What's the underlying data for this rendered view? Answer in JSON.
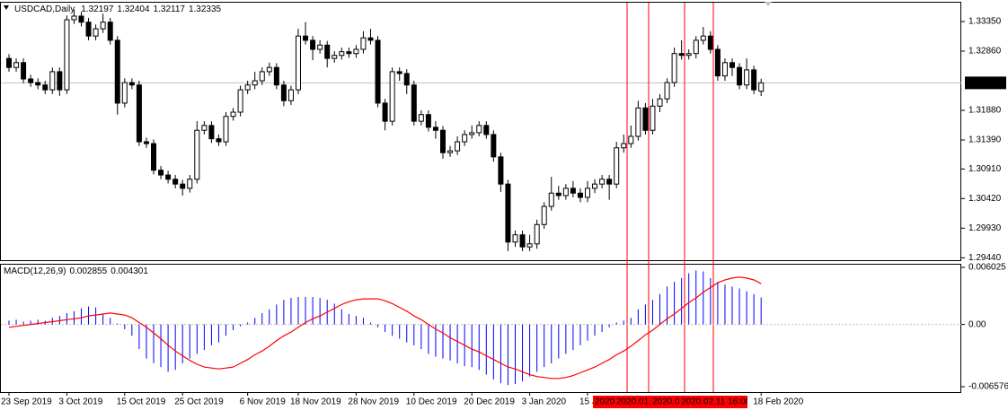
{
  "chart_data": [
    {
      "type": "candlestick",
      "title": "USDCAD,Daily",
      "up_color": "#ffffff",
      "down_color": "#000000",
      "wick_color": "#000000",
      "last_price_line": true,
      "ylim": [
        1.294,
        1.33677
      ],
      "yticks": [
        {
          "value": 1.3335,
          "label": "1.33350"
        },
        {
          "value": 1.3286,
          "label": "1.32860"
        },
        {
          "value": 1.3188,
          "label": "1.31880"
        },
        {
          "value": 1.3139,
          "label": "1.31390"
        },
        {
          "value": 1.3091,
          "label": "1.30910"
        },
        {
          "value": 1.3042,
          "label": "1.30420"
        },
        {
          "value": 1.2993,
          "label": "1.29930"
        },
        {
          "value": 1.2944,
          "label": "1.29440"
        }
      ],
      "markers": [
        "2020",
        "2020.01.",
        "2020.0",
        "2020.02.11 16:00"
      ],
      "categories": [
        "23 Sep 2019",
        null,
        null,
        null,
        null,
        null,
        null,
        null,
        "3 Oct 2019",
        null,
        null,
        null,
        null,
        null,
        null,
        null,
        "15 Oct 2019",
        null,
        null,
        null,
        null,
        null,
        null,
        null,
        "25 Oct 2019",
        null,
        null,
        null,
        null,
        null,
        null,
        null,
        null,
        "6 Nov 2019",
        null,
        null,
        null,
        null,
        null,
        null,
        "18 Nov 2019",
        null,
        null,
        null,
        null,
        null,
        null,
        null,
        "28 Nov 2019",
        null,
        null,
        null,
        null,
        null,
        null,
        null,
        "10 Dec 2019",
        null,
        null,
        null,
        null,
        null,
        null,
        null,
        "20 Dec 2019",
        null,
        null,
        null,
        null,
        null,
        null,
        null,
        "3 Jan 2020",
        null,
        null,
        null,
        null,
        null,
        null,
        null,
        "15 J",
        null,
        null,
        null,
        null,
        null,
        null,
        null,
        null,
        null,
        null,
        null,
        null,
        null,
        null,
        null,
        null,
        null,
        null,
        null,
        null,
        null,
        null,
        null,
        "18 Feb 2020"
      ],
      "candles": [
        [
          1.3274,
          1.3281,
          1.3252,
          1.3259
        ],
        [
          1.3259,
          1.3274,
          1.3252,
          1.3267
        ],
        [
          1.3267,
          1.3274,
          1.3233,
          1.324
        ],
        [
          1.324,
          1.3247,
          1.3227,
          1.3234
        ],
        [
          1.3234,
          1.3241,
          1.3223,
          1.323
        ],
        [
          1.323,
          1.3237,
          1.3215,
          1.3222
        ],
        [
          1.3222,
          1.3259,
          1.3215,
          1.3252
        ],
        [
          1.3252,
          1.3259,
          1.3212,
          1.3222
        ],
        [
          1.3222,
          1.3345,
          1.3215,
          1.3338
        ],
        [
          1.3338,
          1.3355,
          1.3331,
          1.3344
        ],
        [
          1.3344,
          1.3351,
          1.3327,
          1.3334
        ],
        [
          1.3334,
          1.3341,
          1.3304,
          1.3311
        ],
        [
          1.3311,
          1.333,
          1.3304,
          1.3323
        ],
        [
          1.3323,
          1.3348,
          1.3316,
          1.3334
        ],
        [
          1.3334,
          1.3341,
          1.3297,
          1.3304
        ],
        [
          1.3304,
          1.3311,
          1.3181,
          1.32
        ],
        [
          1.32,
          1.3241,
          1.3193,
          1.3234
        ],
        [
          1.3234,
          1.3241,
          1.3223,
          1.323
        ],
        [
          1.323,
          1.3237,
          1.3129,
          1.3136
        ],
        [
          1.3136,
          1.3143,
          1.3126,
          1.3133
        ],
        [
          1.3133,
          1.314,
          1.3082,
          1.3089
        ],
        [
          1.3089,
          1.3096,
          1.3074,
          1.3081
        ],
        [
          1.3081,
          1.3088,
          1.3067,
          1.3074
        ],
        [
          1.3074,
          1.3081,
          1.3059,
          1.3066
        ],
        [
          1.3066,
          1.3073,
          1.3047,
          1.3059
        ],
        [
          1.3059,
          1.3081,
          1.3052,
          1.3074
        ],
        [
          1.3074,
          1.317,
          1.3067,
          1.3155
        ],
        [
          1.3155,
          1.317,
          1.3148,
          1.3163
        ],
        [
          1.3163,
          1.317,
          1.3134,
          1.3141
        ],
        [
          1.3141,
          1.3148,
          1.3129,
          1.3136
        ],
        [
          1.3136,
          1.3185,
          1.3129,
          1.3178
        ],
        [
          1.3178,
          1.3192,
          1.3171,
          1.3185
        ],
        [
          1.3185,
          1.3229,
          1.3178,
          1.3222
        ],
        [
          1.3222,
          1.3237,
          1.3215,
          1.323
        ],
        [
          1.323,
          1.3252,
          1.3223,
          1.3237
        ],
        [
          1.3237,
          1.3259,
          1.323,
          1.3252
        ],
        [
          1.3252,
          1.3267,
          1.3245,
          1.3259
        ],
        [
          1.3259,
          1.3266,
          1.3223,
          1.323
        ],
        [
          1.323,
          1.3237,
          1.3195,
          1.3204
        ],
        [
          1.3204,
          1.3229,
          1.3197,
          1.3222
        ],
        [
          1.3222,
          1.3323,
          1.3215,
          1.3311
        ],
        [
          1.3311,
          1.3334,
          1.3297,
          1.3304
        ],
        [
          1.3304,
          1.3311,
          1.3271,
          1.3289
        ],
        [
          1.3289,
          1.3304,
          1.3282,
          1.3296
        ],
        [
          1.3296,
          1.3303,
          1.3259,
          1.3274
        ],
        [
          1.3274,
          1.3286,
          1.3267,
          1.3279
        ],
        [
          1.3279,
          1.3292,
          1.3272,
          1.3285
        ],
        [
          1.3285,
          1.3292,
          1.3275,
          1.3282
        ],
        [
          1.3282,
          1.3296,
          1.3275,
          1.3289
        ],
        [
          1.3289,
          1.3319,
          1.3282,
          1.3308
        ],
        [
          1.3308,
          1.3323,
          1.3297,
          1.3304
        ],
        [
          1.3304,
          1.3311,
          1.3193,
          1.32
        ],
        [
          1.32,
          1.3207,
          1.3155,
          1.317
        ],
        [
          1.317,
          1.3259,
          1.3163,
          1.3252
        ],
        [
          1.3252,
          1.3259,
          1.3237,
          1.3249
        ],
        [
          1.3249,
          1.3256,
          1.3215,
          1.323
        ],
        [
          1.323,
          1.3237,
          1.3163,
          1.317
        ],
        [
          1.317,
          1.3188,
          1.3163,
          1.3181
        ],
        [
          1.3181,
          1.3188,
          1.3153,
          1.316
        ],
        [
          1.316,
          1.317,
          1.3141,
          1.3155
        ],
        [
          1.3155,
          1.3162,
          1.3108,
          1.3118
        ],
        [
          1.3118,
          1.3129,
          1.3111,
          1.3121
        ],
        [
          1.3121,
          1.3145,
          1.3114,
          1.3136
        ],
        [
          1.3136,
          1.3155,
          1.3129,
          1.3148
        ],
        [
          1.3148,
          1.3163,
          1.3141,
          1.3151
        ],
        [
          1.3151,
          1.317,
          1.3145,
          1.3163
        ],
        [
          1.3163,
          1.317,
          1.3141,
          1.3148
        ],
        [
          1.3148,
          1.3155,
          1.3103,
          1.3111
        ],
        [
          1.3111,
          1.3118,
          1.3053,
          1.3066
        ],
        [
          1.3066,
          1.3073,
          1.2955,
          1.297
        ],
        [
          1.297,
          1.2989,
          1.2962,
          1.2982
        ],
        [
          1.2982,
          1.2989,
          1.2955,
          1.2962
        ],
        [
          1.2962,
          1.2982,
          1.2955,
          1.2967
        ],
        [
          1.2967,
          1.3007,
          1.2959,
          1.2999
        ],
        [
          1.2999,
          1.3036,
          1.2992,
          1.3029
        ],
        [
          1.3029,
          1.3078,
          1.3022,
          1.3051
        ],
        [
          1.3051,
          1.3063,
          1.304,
          1.3047
        ],
        [
          1.3047,
          1.3066,
          1.304,
          1.3059
        ],
        [
          1.3059,
          1.3071,
          1.3044,
          1.3051
        ],
        [
          1.3051,
          1.3059,
          1.3036,
          1.3044
        ],
        [
          1.3044,
          1.3071,
          1.3036,
          1.3059
        ],
        [
          1.3059,
          1.3074,
          1.3051,
          1.3066
        ],
        [
          1.3066,
          1.3081,
          1.3059,
          1.3074
        ],
        [
          1.3074,
          1.3081,
          1.304,
          1.3066
        ],
        [
          1.3066,
          1.3136,
          1.3059,
          1.3126
        ],
        [
          1.3126,
          1.3148,
          1.3118,
          1.3133
        ],
        [
          1.3133,
          1.3163,
          1.3126,
          1.3145
        ],
        [
          1.3145,
          1.3204,
          1.3138,
          1.3192
        ],
        [
          1.3192,
          1.32,
          1.3148,
          1.3155
        ],
        [
          1.3155,
          1.3207,
          1.3148,
          1.3195
        ],
        [
          1.3195,
          1.3215,
          1.3185,
          1.3207
        ],
        [
          1.3207,
          1.3241,
          1.32,
          1.3234
        ],
        [
          1.3234,
          1.3292,
          1.3227,
          1.3282
        ],
        [
          1.3282,
          1.3304,
          1.3272,
          1.3279
        ],
        [
          1.3279,
          1.3289,
          1.3272,
          1.3282
        ],
        [
          1.3282,
          1.3311,
          1.3274,
          1.3304
        ],
        [
          1.3304,
          1.3326,
          1.3297,
          1.3311
        ],
        [
          1.3311,
          1.3319,
          1.3282,
          1.3289
        ],
        [
          1.3289,
          1.3296,
          1.3237,
          1.3245
        ],
        [
          1.3245,
          1.3274,
          1.3237,
          1.3267
        ],
        [
          1.3267,
          1.3274,
          1.3245,
          1.3259
        ],
        [
          1.3259,
          1.3266,
          1.3223,
          1.323
        ],
        [
          1.323,
          1.3274,
          1.3223,
          1.3255
        ],
        [
          1.3255,
          1.3262,
          1.3215,
          1.3222
        ],
        [
          1.32197,
          1.32404,
          1.32117,
          1.32335
        ]
      ]
    },
    {
      "type": "macd",
      "title": "MACD(12,26,9)",
      "ylim": [
        -0.00714,
        0.00631
      ],
      "yticks": [
        0.006025,
        {
          "value": 0,
          "label": "0.00"
        },
        -0.006576
      ],
      "histogram": {
        "color": "#0000ff",
        "values": [
          0.0004,
          0.0005,
          0.0003,
          0.0004,
          0.0005,
          0.0004,
          0.0007,
          0.0009,
          0.0012,
          0.0014,
          0.0017,
          0.0019,
          0.0018,
          0.0011,
          0.0007,
          0.0001,
          -0.0005,
          -0.0012,
          -0.0026,
          -0.0036,
          -0.0041,
          -0.0045,
          -0.005,
          -0.0048,
          -0.0041,
          -0.0036,
          -0.0031,
          -0.0027,
          -0.0022,
          -0.0019,
          -0.0012,
          -0.0006,
          -0.0002,
          0.0002,
          0.0007,
          0.0012,
          0.0016,
          0.0021,
          0.0026,
          0.0028,
          0.0029,
          0.0029,
          0.0029,
          0.0028,
          0.0026,
          0.0022,
          0.0016,
          0.0011,
          0.0009,
          0.0007,
          0.0002,
          -0.0003,
          -0.0008,
          -0.0012,
          -0.0015,
          -0.0019,
          -0.0022,
          -0.0026,
          -0.0031,
          -0.0034,
          -0.0036,
          -0.0038,
          -0.0041,
          -0.0044,
          -0.0045,
          -0.0048,
          -0.0053,
          -0.0058,
          -0.0062,
          -0.0064,
          -0.0063,
          -0.006,
          -0.0055,
          -0.005,
          -0.0045,
          -0.0041,
          -0.0036,
          -0.0031,
          -0.0027,
          -0.0022,
          -0.0017,
          -0.0012,
          -0.0008,
          -0.0003,
          0.0002,
          0.0004,
          0.0007,
          0.0016,
          0.0021,
          0.0026,
          0.0032,
          0.004,
          0.0045,
          0.0049,
          0.0054,
          0.0057,
          0.0056,
          0.0049,
          0.0045,
          0.0042,
          0.004,
          0.0038,
          0.0035,
          0.0032,
          0.002855
        ]
      },
      "signal": {
        "color": "#ff0000",
        "values": [
          -0.0003,
          -0.0002,
          -0.0001,
          0,
          0.0001,
          0.0002,
          0.0003,
          0.0004,
          0.0005,
          0.0006,
          0.0007,
          0.0009,
          0.001,
          0.0011,
          0.0012,
          0.0011,
          0.001,
          0.0007,
          0.0002,
          -0.0003,
          -0.0009,
          -0.0015,
          -0.0022,
          -0.0028,
          -0.0033,
          -0.0038,
          -0.0042,
          -0.0045,
          -0.0046,
          -0.0047,
          -0.0046,
          -0.0045,
          -0.0041,
          -0.0037,
          -0.0032,
          -0.0028,
          -0.0023,
          -0.0017,
          -0.0012,
          -0.0008,
          -0.0003,
          0.0002,
          0.0006,
          0.0009,
          0.0013,
          0.0017,
          0.0021,
          0.0024,
          0.0026,
          0.0027,
          0.0027,
          0.0027,
          0.0025,
          0.0022,
          0.0018,
          0.0014,
          0.0009,
          0.0005,
          0,
          -0.0005,
          -0.0009,
          -0.0014,
          -0.0018,
          -0.0022,
          -0.0026,
          -0.0029,
          -0.0033,
          -0.0037,
          -0.0041,
          -0.0045,
          -0.0047,
          -0.005,
          -0.0053,
          -0.0055,
          -0.0056,
          -0.0057,
          -0.0057,
          -0.0056,
          -0.0054,
          -0.0051,
          -0.0048,
          -0.0045,
          -0.0041,
          -0.0037,
          -0.0032,
          -0.0028,
          -0.0023,
          -0.0017,
          -0.0011,
          -0.0006,
          0,
          0.0006,
          0.0011,
          0.0017,
          0.0023,
          0.0028,
          0.0034,
          0.0039,
          0.0044,
          0.0047,
          0.0049,
          0.005,
          0.0049,
          0.0047,
          0.004301
        ]
      }
    }
  ]
}
